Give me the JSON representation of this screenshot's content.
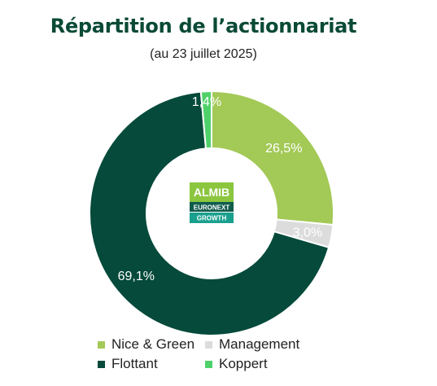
{
  "title": "Répartition de l’actionnariat",
  "subtitle": "(au 23 juillet 2025)",
  "logo": {
    "brand": "ALMIB",
    "line1": "EURONEXT",
    "line2": "GROWTH",
    "colors": {
      "brand_bg": "#8cc63f",
      "line1_bg": "#0f5c4c",
      "line2_bg": "#1aa08e"
    }
  },
  "chart_data": {
    "type": "pie",
    "donut": true,
    "start_angle_deg": 0,
    "direction": "clockwise",
    "slices": [
      {
        "name": "Nice & Green",
        "value": 26.5,
        "label": "26,5%",
        "color": "#a3c957"
      },
      {
        "name": "Management",
        "value": 3.0,
        "label": "3,0%",
        "color": "#dcdcdc"
      },
      {
        "name": "Flottant",
        "value": 69.1,
        "label": "69,1%",
        "color": "#054a3a"
      },
      {
        "name": "Koppert",
        "value": 1.4,
        "label": "1,4%",
        "color": "#4fd16a"
      }
    ],
    "legend_position": "bottom"
  },
  "legend": [
    {
      "label": "Nice & Green",
      "color": "#a3c957"
    },
    {
      "label": "Management",
      "color": "#dcdcdc"
    },
    {
      "label": "Flottant",
      "color": "#054a3a"
    },
    {
      "label": "Koppert",
      "color": "#4fd16a"
    }
  ]
}
